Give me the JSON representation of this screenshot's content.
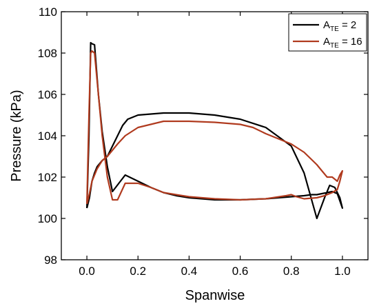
{
  "chart_data": {
    "type": "line",
    "xlabel": "Spanwise",
    "ylabel": "Pressure (kPa)",
    "xlim": [
      -0.1,
      1.1
    ],
    "ylim": [
      98,
      110
    ],
    "xticks": [
      0.0,
      0.2,
      0.4,
      0.6,
      0.8,
      1.0
    ],
    "xtick_labels": [
      "0.0",
      "0.2",
      "0.4",
      "0.6",
      "0.8",
      "1.0"
    ],
    "yticks": [
      98,
      100,
      102,
      104,
      106,
      108,
      110
    ],
    "ytick_labels": [
      "98",
      "100",
      "102",
      "104",
      "106",
      "108",
      "110"
    ],
    "grid": false,
    "legend_position": "top-right",
    "series": [
      {
        "name_base": "A",
        "name_sub": "TE",
        "name_rest": " = 2",
        "color": "#000000",
        "x": [
          0.0,
          0.008,
          0.015,
          0.02,
          0.03,
          0.045,
          0.06,
          0.08,
          0.1,
          0.15,
          0.2,
          0.25,
          0.3,
          0.35,
          0.4,
          0.5,
          0.6,
          0.7,
          0.8,
          0.85,
          0.88,
          0.9,
          0.92,
          0.94,
          0.96,
          0.98,
          1.0,
          0.99,
          0.97,
          0.95,
          0.93,
          0.9,
          0.85,
          0.8,
          0.7,
          0.6,
          0.5,
          0.4,
          0.3,
          0.2,
          0.16,
          0.14,
          0.12,
          0.1,
          0.08,
          0.06,
          0.04,
          0.03,
          0.02,
          0.01,
          0.0
        ],
        "y": [
          100.5,
          104.0,
          108.5,
          108.45,
          108.4,
          106.0,
          104.2,
          102.5,
          101.3,
          102.1,
          101.8,
          101.5,
          101.25,
          101.1,
          101.0,
          100.9,
          100.9,
          100.95,
          101.05,
          101.1,
          101.15,
          101.15,
          101.2,
          101.25,
          101.3,
          101.2,
          100.5,
          101.0,
          101.5,
          101.6,
          101.0,
          100.0,
          102.2,
          103.5,
          104.4,
          104.8,
          105.0,
          105.1,
          105.1,
          105.0,
          104.8,
          104.5,
          104.0,
          103.5,
          103.0,
          102.8,
          102.5,
          102.2,
          101.8,
          101.0,
          100.5
        ]
      },
      {
        "name_base": "A",
        "name_sub": "TE",
        "name_rest": " = 16",
        "color": "#b03a1e",
        "x": [
          0.0,
          0.008,
          0.015,
          0.02,
          0.03,
          0.045,
          0.06,
          0.08,
          0.1,
          0.12,
          0.15,
          0.2,
          0.25,
          0.3,
          0.4,
          0.5,
          0.6,
          0.7,
          0.78,
          0.8,
          0.82,
          0.85,
          0.9,
          0.93,
          0.96,
          0.98,
          0.99,
          1.0,
          0.99,
          0.98,
          0.96,
          0.94,
          0.92,
          0.9,
          0.85,
          0.8,
          0.7,
          0.65,
          0.6,
          0.5,
          0.4,
          0.3,
          0.2,
          0.15,
          0.12,
          0.1,
          0.08,
          0.06,
          0.04,
          0.02,
          0.01,
          0.0
        ],
        "y": [
          100.7,
          105.0,
          108.0,
          108.1,
          108.0,
          106.0,
          104.0,
          102.0,
          100.9,
          100.9,
          101.7,
          101.7,
          101.5,
          101.25,
          101.05,
          100.95,
          100.9,
          100.95,
          101.1,
          101.15,
          101.05,
          100.95,
          101.0,
          101.1,
          101.25,
          101.4,
          101.8,
          102.3,
          102.1,
          101.8,
          102.0,
          102.0,
          102.3,
          102.6,
          103.2,
          103.6,
          104.1,
          104.4,
          104.55,
          104.65,
          104.7,
          104.7,
          104.4,
          104.0,
          103.6,
          103.3,
          103.0,
          102.8,
          102.4,
          101.8,
          101.2,
          100.7
        ]
      }
    ]
  }
}
